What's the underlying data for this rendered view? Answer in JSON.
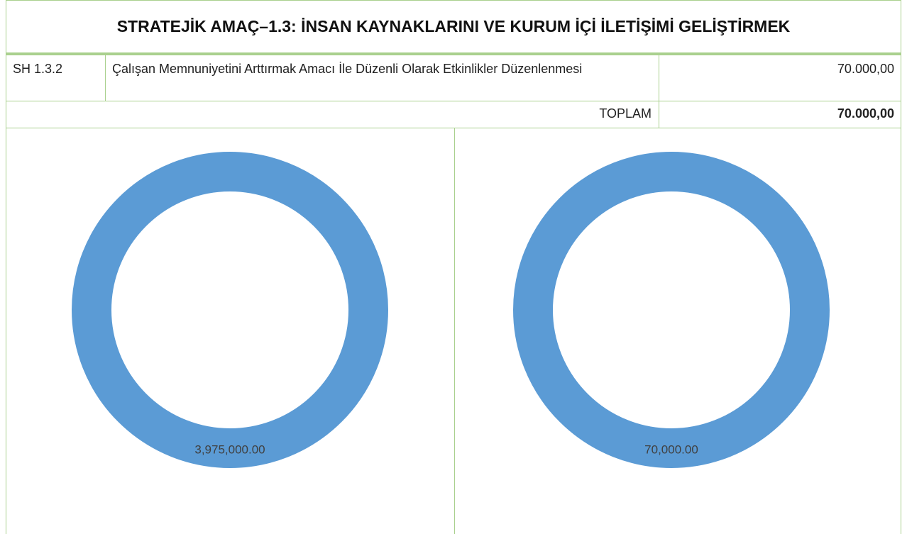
{
  "header": {
    "title": "STRATEJİK AMAÇ–1.3: İNSAN KAYNAKLARINI VE KURUM İÇİ İLETİŞİMİ GELİŞTİRMEK"
  },
  "table": {
    "rows": [
      [
        "SH 1.3.2",
        "Çalışan Memnuniyetini Arttırmak Amacı İle Düzenli Olarak Etkinlikler Düzenlenmesi",
        "70.000,00"
      ]
    ],
    "total": [
      "TOPLAM",
      "70.000,00"
    ]
  },
  "chart_data": [
    {
      "type": "donut",
      "values": [
        3975000
      ],
      "value_labels": [
        "3,975,000.00"
      ],
      "color": "#5b9bd5"
    },
    {
      "type": "donut",
      "values": [
        70000
      ],
      "value_labels": [
        "70,000.00"
      ],
      "color": "#5b9bd5"
    }
  ]
}
